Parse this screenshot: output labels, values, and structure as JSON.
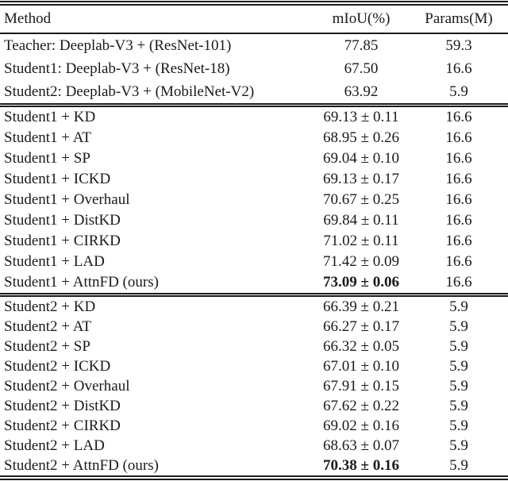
{
  "colors": {
    "text": "#1a1a1a",
    "background": "#ffffff",
    "rule": "#1a1a1a"
  },
  "table": {
    "headers": {
      "method": "Method",
      "miou": "mIoU(%)",
      "params": "Params(M)"
    },
    "sections": [
      {
        "rows": [
          {
            "method": "Teacher: Deeplab-V3 + (ResNet-101)",
            "miou": "77.85",
            "params": "59.3",
            "bold": false
          },
          {
            "method": "Student1: Deeplab-V3 + (ResNet-18)",
            "miou": "67.50",
            "params": "16.6",
            "bold": false
          },
          {
            "method": "Student2: Deeplab-V3 + (MobileNet-V2)",
            "miou": "63.92",
            "params": "5.9",
            "bold": false
          }
        ]
      },
      {
        "rows": [
          {
            "method": "Student1 + KD",
            "miou": "69.13 ± 0.11",
            "params": "16.6",
            "bold": false
          },
          {
            "method": "Student1 + AT",
            "miou": "68.95 ± 0.26",
            "params": "16.6",
            "bold": false
          },
          {
            "method": "Student1 + SP",
            "miou": "69.04 ± 0.10",
            "params": "16.6",
            "bold": false
          },
          {
            "method": "Student1 + ICKD",
            "miou": "69.13 ± 0.17",
            "params": "16.6",
            "bold": false
          },
          {
            "method": "Student1 + Overhaul",
            "miou": "70.67 ± 0.25",
            "params": "16.6",
            "bold": false
          },
          {
            "method": "Student1 + DistKD",
            "miou": "69.84 ± 0.11",
            "params": "16.6",
            "bold": false
          },
          {
            "method": "Student1 + CIRKD",
            "miou": "71.02 ± 0.11",
            "params": "16.6",
            "bold": false
          },
          {
            "method": "Student1 + LAD",
            "miou": "71.42 ± 0.09",
            "params": "16.6",
            "bold": false
          },
          {
            "method": "Student1 + AttnFD (ours)",
            "miou": "73.09 ± 0.06",
            "params": "16.6",
            "bold": true
          }
        ]
      },
      {
        "rows": [
          {
            "method": "Student2 + KD",
            "miou": "66.39 ± 0.21",
            "params": "5.9",
            "bold": false
          },
          {
            "method": "Student2 + AT",
            "miou": "66.27 ± 0.17",
            "params": "5.9",
            "bold": false
          },
          {
            "method": "Student2 + SP",
            "miou": "66.32 ± 0.05",
            "params": "5.9",
            "bold": false
          },
          {
            "method": "Student2 + ICKD",
            "miou": "67.01 ± 0.10",
            "params": "5.9",
            "bold": false
          },
          {
            "method": "Student2 + Overhaul",
            "miou": "67.91 ± 0.15",
            "params": "5.9",
            "bold": false
          },
          {
            "method": "Student2 + DistKD",
            "miou": "67.62 ± 0.22",
            "params": "5.9",
            "bold": false
          },
          {
            "method": "Student2 + CIRKD",
            "miou": "69.02 ± 0.16",
            "params": "5.9",
            "bold": false
          },
          {
            "method": "Student2 + LAD",
            "miou": "68.63 ± 0.07",
            "params": "5.9",
            "bold": false
          },
          {
            "method": "Student2 + AttnFD (ours)",
            "miou": "70.38 ± 0.16",
            "params": "5.9",
            "bold": true
          }
        ]
      }
    ]
  }
}
